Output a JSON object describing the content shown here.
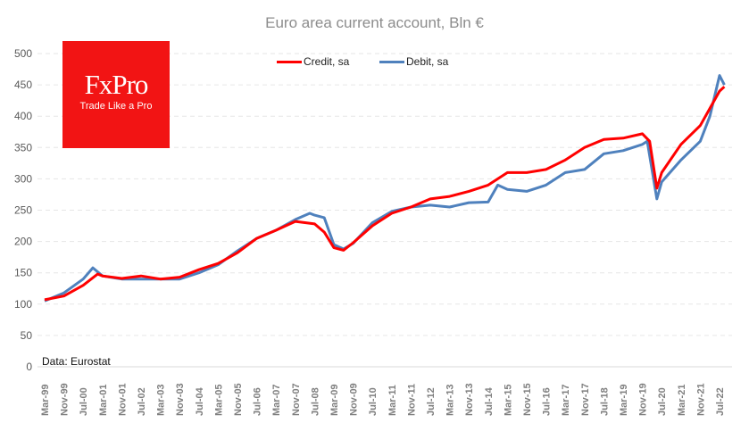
{
  "chart_data": {
    "type": "line",
    "title": "Euro area current account, Bln €",
    "xlabel": "",
    "ylabel": "",
    "ylim": [
      0,
      500
    ],
    "yticks": [
      "0",
      "50",
      "100",
      "150",
      "200",
      "250",
      "300",
      "350",
      "400",
      "450",
      "500"
    ],
    "xticks": [
      "Mar-99",
      "Nov-99",
      "Jul-00",
      "Mar-01",
      "Nov-01",
      "Jul-02",
      "Mar-03",
      "Nov-03",
      "Jul-04",
      "Mar-05",
      "Nov-05",
      "Jul-06",
      "Mar-07",
      "Nov-07",
      "Jul-08",
      "Mar-09",
      "Nov-09",
      "Jul-10",
      "Mar-11",
      "Nov-11",
      "Jul-12",
      "Mar-13",
      "Nov-13",
      "Jul-14",
      "Mar-15",
      "Nov-15",
      "Jul-16",
      "Mar-17",
      "Nov-17",
      "Jul-18",
      "Mar-19",
      "Nov-19",
      "Jul-20",
      "Mar-21",
      "Nov-21",
      "Jul-22"
    ],
    "grid": true,
    "legend_position": "top-center",
    "series": [
      {
        "name": "Credit, sa",
        "color": "#ff0000",
        "x": [
          "1999-03",
          "1999-11",
          "2000-07",
          "2001-01",
          "2001-03",
          "2001-11",
          "2002-07",
          "2003-03",
          "2003-11",
          "2004-07",
          "2005-03",
          "2005-11",
          "2006-07",
          "2007-03",
          "2007-11",
          "2008-03",
          "2008-07",
          "2008-11",
          "2009-03",
          "2009-07",
          "2009-11",
          "2010-07",
          "2011-03",
          "2011-11",
          "2012-07",
          "2013-03",
          "2013-11",
          "2014-07",
          "2015-03",
          "2015-11",
          "2016-07",
          "2017-03",
          "2017-11",
          "2018-07",
          "2019-03",
          "2019-11",
          "2020-02",
          "2020-05",
          "2020-07",
          "2021-03",
          "2021-11",
          "2022-07",
          "2022-09"
        ],
        "values": [
          107,
          113,
          130,
          148,
          145,
          141,
          145,
          140,
          143,
          155,
          165,
          182,
          205,
          218,
          232,
          230,
          228,
          215,
          190,
          186,
          198,
          225,
          245,
          255,
          268,
          272,
          280,
          290,
          310,
          310,
          315,
          330,
          350,
          363,
          365,
          372,
          360,
          285,
          310,
          355,
          385,
          440,
          447
        ]
      },
      {
        "name": "Debit, sa",
        "color": "#4f81bd",
        "x": [
          "1999-03",
          "1999-11",
          "2000-07",
          "2000-11",
          "2001-03",
          "2001-11",
          "2002-07",
          "2003-03",
          "2003-11",
          "2004-07",
          "2005-03",
          "2005-11",
          "2006-07",
          "2007-03",
          "2007-11",
          "2008-05",
          "2008-07",
          "2008-11",
          "2009-03",
          "2009-07",
          "2009-11",
          "2010-07",
          "2011-03",
          "2011-11",
          "2012-07",
          "2013-03",
          "2013-11",
          "2014-07",
          "2014-11",
          "2015-03",
          "2015-11",
          "2016-07",
          "2017-03",
          "2017-11",
          "2018-07",
          "2019-03",
          "2019-11",
          "2020-01",
          "2020-05",
          "2020-07",
          "2021-03",
          "2021-11",
          "2022-03",
          "2022-07",
          "2022-09"
        ],
        "values": [
          105,
          118,
          140,
          158,
          145,
          140,
          140,
          140,
          140,
          150,
          163,
          185,
          205,
          218,
          235,
          245,
          242,
          238,
          195,
          188,
          197,
          230,
          248,
          255,
          258,
          255,
          262,
          263,
          290,
          283,
          280,
          290,
          310,
          315,
          340,
          345,
          355,
          360,
          268,
          295,
          330,
          360,
          400,
          465,
          450
        ]
      }
    ],
    "source_note": "Data: Eurostat"
  },
  "logo": {
    "brand": "FxPro",
    "tagline": "Trade Like a Pro"
  }
}
